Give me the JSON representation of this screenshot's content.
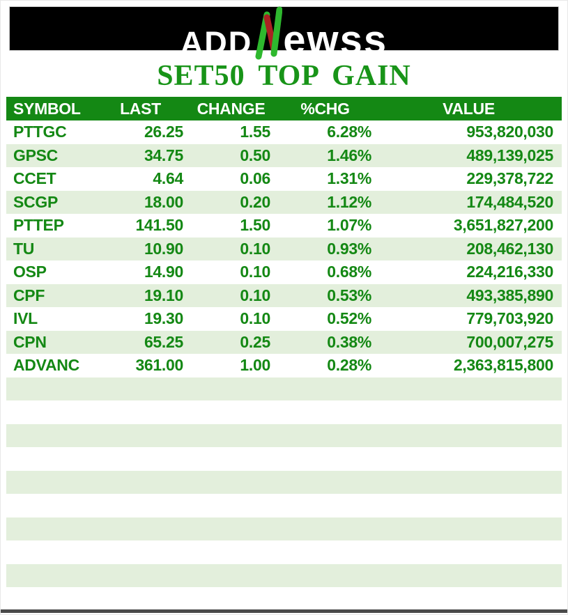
{
  "brand": {
    "logo_prefix": "ADD",
    "logo_mark_icon": "stylized-n-candlestick",
    "logo_suffix": "ewss"
  },
  "page_title": "SET50 TOP GAIN",
  "chart_data": {
    "type": "table",
    "title": "SET50 TOP GAIN",
    "columns": [
      "SYMBOL",
      "LAST",
      "CHANGE",
      "%CHG",
      "VALUE"
    ],
    "rows": [
      [
        "PTTGC",
        "26.25",
        "1.55",
        "6.28%",
        "953,820,030"
      ],
      [
        "GPSC",
        "34.75",
        "0.50",
        "1.46%",
        "489,139,025"
      ],
      [
        "CCET",
        "4.64",
        "0.06",
        "1.31%",
        "229,378,722"
      ],
      [
        "SCGP",
        "18.00",
        "0.20",
        "1.12%",
        "174,484,520"
      ],
      [
        "PTTEP",
        "141.50",
        "1.50",
        "1.07%",
        "3,651,827,200"
      ],
      [
        "TU",
        "10.90",
        "0.10",
        "0.93%",
        "208,462,130"
      ],
      [
        "OSP",
        "14.90",
        "0.10",
        "0.68%",
        "224,216,330"
      ],
      [
        "CPF",
        "19.10",
        "0.10",
        "0.53%",
        "493,385,890"
      ],
      [
        "IVL",
        "19.30",
        "0.10",
        "0.52%",
        "779,703,920"
      ],
      [
        "CPN",
        "65.25",
        "0.25",
        "0.38%",
        "700,007,275"
      ],
      [
        "ADVANC",
        "361.00",
        "1.00",
        "0.28%",
        "2,363,815,800"
      ]
    ],
    "legend": "none",
    "grid": "banded-rows"
  },
  "layout": {
    "empty_row_count": 10
  },
  "colors": {
    "header_green": "#148814",
    "row_text_green": "#148814",
    "band_green": "#e3efdc",
    "title_green": "#189418",
    "logo_bg": "#000000",
    "logo_text": "#ffffff",
    "logo_n_green": "#2eb82e",
    "logo_n_red": "#aa2222",
    "footer_bar": "#4a4a4a"
  }
}
